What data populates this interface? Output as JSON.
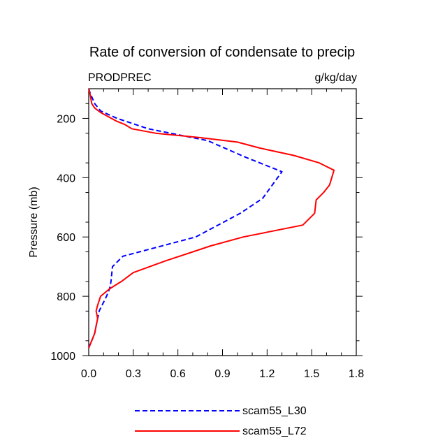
{
  "chart_data": {
    "type": "line",
    "title": "Rate of conversion of condensate to precip",
    "left_label": "PRODPREC",
    "right_label": "g/kg/day",
    "xlabel": "",
    "ylabel": "Pressure (mb)",
    "xlim": [
      0.0,
      1.8
    ],
    "ylim": [
      1000,
      100
    ],
    "y_inverted": true,
    "x_ticks": [
      0.0,
      0.3,
      0.6,
      0.9,
      1.2,
      1.5,
      1.8
    ],
    "x_tick_labels": [
      "0.0",
      "0.3",
      "0.6",
      "0.9",
      "1.2",
      "1.5",
      "1.8"
    ],
    "y_ticks": [
      200,
      400,
      600,
      800,
      1000
    ],
    "y_tick_labels": [
      "200",
      "400",
      "600",
      "800",
      "1000"
    ],
    "grid": false,
    "legend_position": "bottom",
    "series": [
      {
        "name": "scam55_L30",
        "color": "#0000ff",
        "style": "dashed",
        "x": [
          0.0,
          0.01,
          0.04,
          0.08,
          0.19,
          0.4,
          0.8,
          1.05,
          1.3,
          1.17,
          1.02,
          0.72,
          0.23,
          0.16,
          0.15,
          0.14,
          0.12,
          0.07,
          0.05,
          0.04,
          0.02,
          0.0
        ],
        "y": [
          100,
          115,
          150,
          175,
          200,
          235,
          275,
          330,
          380,
          470,
          520,
          600,
          665,
          700,
          750,
          775,
          800,
          850,
          900,
          925,
          950,
          970
        ]
      },
      {
        "name": "scam55_L72",
        "color": "#ff0000",
        "style": "solid",
        "x": [
          0.0,
          0.01,
          0.02,
          0.04,
          0.08,
          0.19,
          0.24,
          0.29,
          0.45,
          0.75,
          1.0,
          1.15,
          1.38,
          1.55,
          1.65,
          1.62,
          1.58,
          1.53,
          1.52,
          1.44,
          1.04,
          0.82,
          0.52,
          0.3,
          0.22,
          0.14,
          0.08,
          0.06,
          0.05,
          0.06,
          0.05,
          0.04,
          0.02,
          0.0
        ],
        "y": [
          100,
          120,
          150,
          165,
          180,
          210,
          220,
          235,
          250,
          265,
          280,
          300,
          325,
          350,
          375,
          425,
          450,
          475,
          520,
          560,
          600,
          630,
          680,
          720,
          750,
          775,
          800,
          830,
          850,
          875,
          900,
          925,
          950,
          975
        ]
      }
    ]
  }
}
